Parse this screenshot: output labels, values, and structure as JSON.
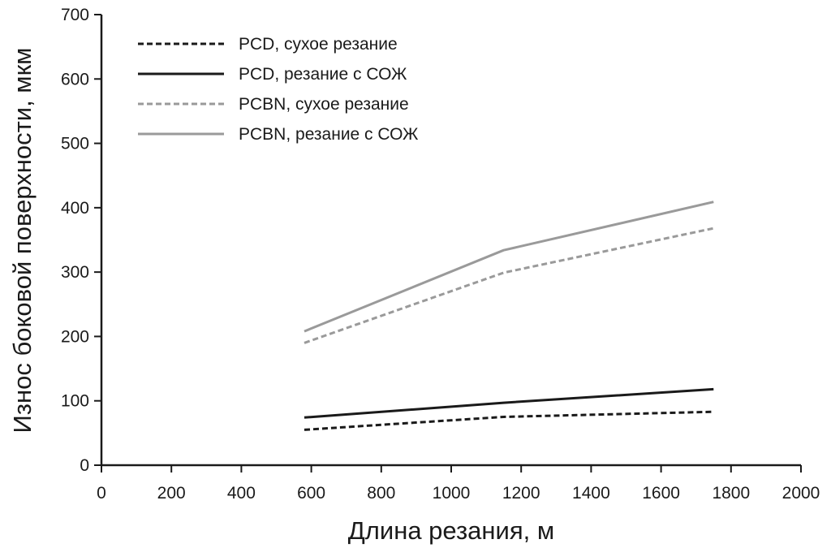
{
  "chart_data": {
    "type": "line",
    "xlabel": "Длина резания, м",
    "ylabel": "Износ боковой поверхности, мкм",
    "xlim": [
      0,
      2000
    ],
    "ylim": [
      0,
      700
    ],
    "x_ticks": [
      "0",
      "200",
      "400",
      "600",
      "800",
      "1000",
      "1200",
      "1400",
      "1600",
      "1800",
      "2000"
    ],
    "y_ticks": [
      "0",
      "100",
      "200",
      "300",
      "400",
      "500",
      "600",
      "700"
    ],
    "grid": false,
    "legend_position": "top-left",
    "series": [
      {
        "name": "PCD, сухое резание",
        "color": "#1a1a1a",
        "dash": true,
        "x": [
          580,
          1150,
          1750
        ],
        "y": [
          55,
          75,
          83
        ]
      },
      {
        "name": "PCD, резание с СОЖ",
        "color": "#1a1a1a",
        "dash": false,
        "x": [
          580,
          1150,
          1750
        ],
        "y": [
          74,
          97,
          118
        ]
      },
      {
        "name": "PCBN, сухое резание",
        "color": "#9a9a9a",
        "dash": true,
        "x": [
          580,
          1150,
          1750
        ],
        "y": [
          190,
          299,
          368
        ]
      },
      {
        "name": "PCBN, резание с СОЖ",
        "color": "#9a9a9a",
        "dash": false,
        "x": [
          580,
          1150,
          1750
        ],
        "y": [
          208,
          334,
          409
        ]
      }
    ]
  }
}
